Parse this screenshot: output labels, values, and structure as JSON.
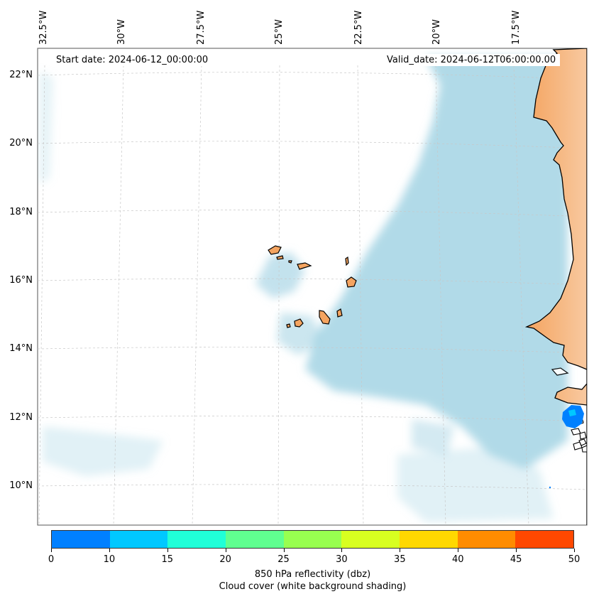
{
  "header": {
    "start_date": "Start date: 2024-06-12_00:00:00",
    "valid_date": "Valid_date: 2024-06-12T06:00:00.00"
  },
  "axes": {
    "longitude_labels": [
      "32.5°W",
      "30°W",
      "27.5°W",
      "25°W",
      "22.5°W",
      "20°W",
      "17.5°W"
    ],
    "latitude_labels": [
      "22°N",
      "20°N",
      "18°N",
      "16°N",
      "14°N",
      "12°N",
      "10°N"
    ],
    "gridlines": true,
    "extent": {
      "lon_min": -32.6,
      "lon_max": -15.0,
      "lat_min": 8.9,
      "lat_max": 22.8
    }
  },
  "colorbar": {
    "ticks": [
      "0",
      "10",
      "15",
      "20",
      "25",
      "30",
      "35",
      "40",
      "45",
      "50"
    ],
    "colors": [
      "#0080ff",
      "#00c8ff",
      "#20ffd8",
      "#60ff90",
      "#98ff50",
      "#d8ff20",
      "#ffd800",
      "#ff8c00",
      "#ff4800"
    ],
    "title_line1": "850 hPa reflectivity (dbz)",
    "title_line2": "Cloud cover (white background shading)"
  },
  "colors": {
    "land": "#f4a460",
    "cloud": "#a9d6e5",
    "coast": "#000000",
    "reflectivity_cell": "#0080ff"
  }
}
